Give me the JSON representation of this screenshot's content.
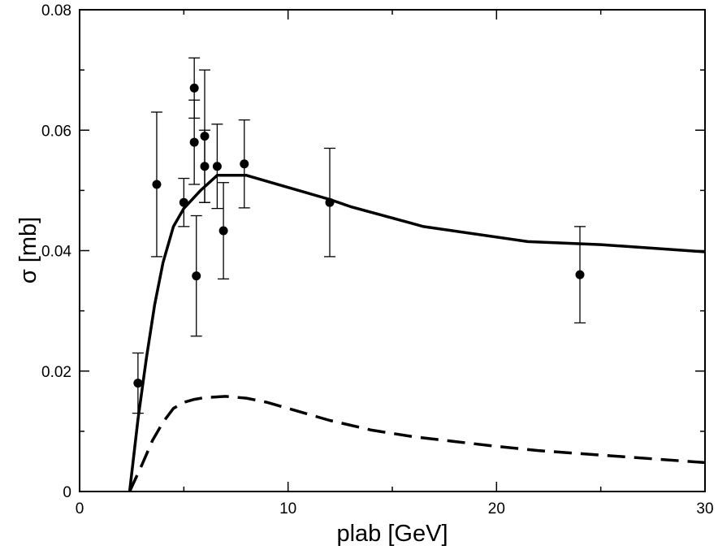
{
  "chart_data": {
    "type": "scatter",
    "title": "",
    "xlabel": "plab [GeV]",
    "ylabel": "σ [mb]",
    "xlim": [
      0,
      30
    ],
    "ylim": [
      0,
      0.08
    ],
    "grid": false,
    "xticks": [
      0,
      10,
      20,
      30
    ],
    "yticks": [
      0,
      0.02,
      0.04,
      0.06,
      0.08
    ],
    "xtick_labels": [
      "0",
      "10",
      "20",
      "30"
    ],
    "ytick_labels": [
      "0",
      "0.02",
      "0.04",
      "0.06",
      "0.08"
    ],
    "series": [
      {
        "name": "solid curve",
        "type": "line",
        "style": "solid",
        "color": "#000000",
        "x": [
          2.4,
          2.8,
          3.2,
          3.6,
          4.0,
          4.5,
          5.0,
          5.8,
          6.6,
          8.0,
          10.0,
          12.0,
          13.0,
          16.5,
          21.5,
          25.0,
          30.0
        ],
        "y": [
          0.0,
          0.012,
          0.022,
          0.031,
          0.038,
          0.044,
          0.047,
          0.05,
          0.0525,
          0.0525,
          0.0505,
          0.0485,
          0.0473,
          0.044,
          0.0415,
          0.041,
          0.0398
        ]
      },
      {
        "name": "dashed curve",
        "type": "line",
        "style": "dashed",
        "color": "#000000",
        "x": [
          2.4,
          3.0,
          3.5,
          4.0,
          4.5,
          5.0,
          5.5,
          6.0,
          7.0,
          8.0,
          9.0,
          10.0,
          12.0,
          14.0,
          16.0,
          18.0,
          20.0,
          22.0,
          24.0,
          26.0,
          28.0,
          30.0
        ],
        "y": [
          0.0,
          0.0045,
          0.0085,
          0.0115,
          0.0138,
          0.0148,
          0.0153,
          0.0156,
          0.0158,
          0.0155,
          0.0148,
          0.0138,
          0.0118,
          0.0102,
          0.0091,
          0.0083,
          0.0075,
          0.0068,
          0.0063,
          0.0058,
          0.0053,
          0.0048
        ]
      },
      {
        "name": "data points",
        "type": "scatter",
        "marker": "circle",
        "color": "#000000",
        "x": [
          2.8,
          3.7,
          5.0,
          5.5,
          5.5,
          5.6,
          6.0,
          6.0,
          6.6,
          6.9,
          7.9,
          12.0,
          24.0
        ],
        "y": [
          0.018,
          0.051,
          0.048,
          0.067,
          0.058,
          0.0358,
          0.059,
          0.054,
          0.054,
          0.0433,
          0.0544,
          0.048,
          0.036
        ],
        "yerr_low": [
          0.005,
          0.012,
          0.004,
          0.005,
          0.007,
          0.01,
          0.011,
          0.006,
          0.007,
          0.008,
          0.0073,
          0.009,
          0.008
        ],
        "yerr_high": [
          0.005,
          0.012,
          0.004,
          0.005,
          0.007,
          0.01,
          0.011,
          0.006,
          0.007,
          0.008,
          0.0073,
          0.009,
          0.008
        ]
      }
    ]
  }
}
